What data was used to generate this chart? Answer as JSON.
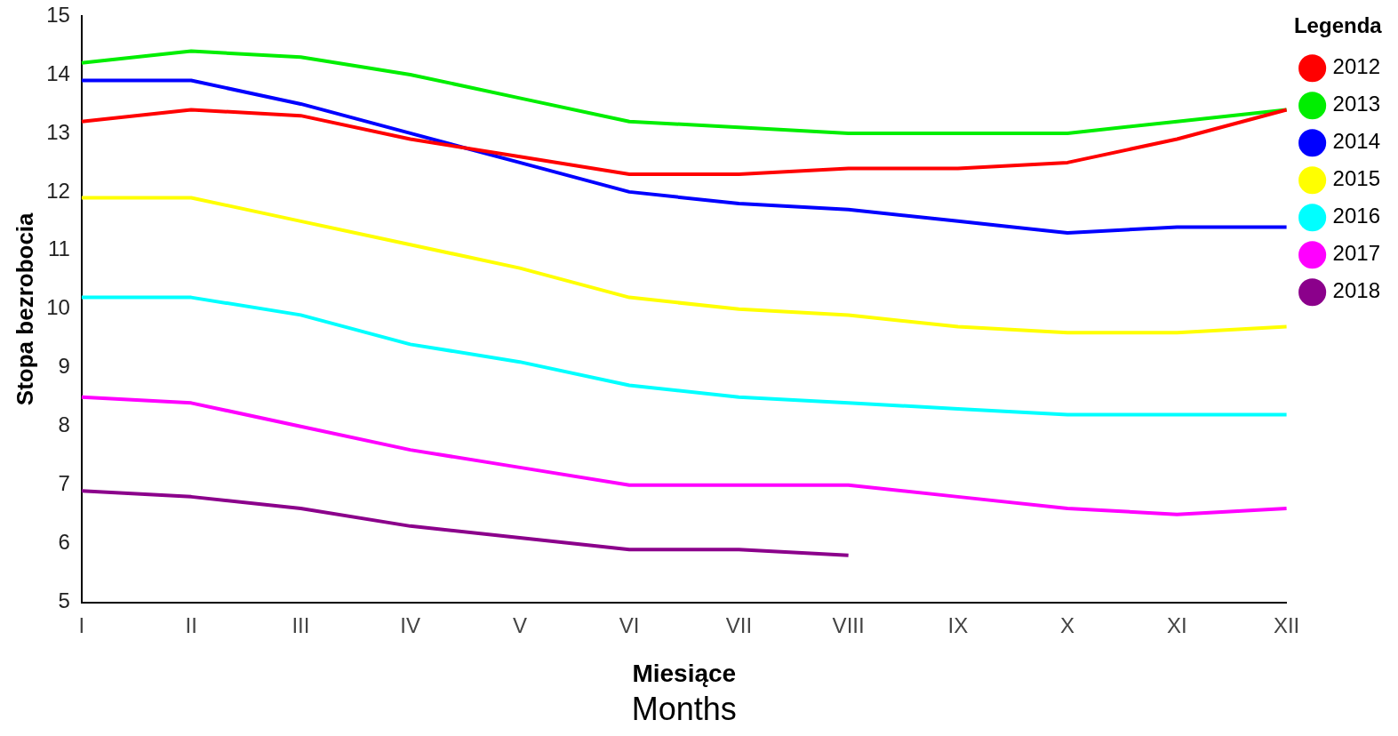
{
  "chart_data": {
    "type": "line",
    "xlabel": "Miesiące",
    "ylabel": "Stopa bezrobocia",
    "legend_title": "Legenda",
    "annotations": [
      "Months"
    ],
    "categories": [
      "I",
      "II",
      "III",
      "IV",
      "V",
      "VI",
      "VII",
      "VIII",
      "IX",
      "X",
      "XI",
      "XII"
    ],
    "series": [
      {
        "name": "2012",
        "color": "#ff0000",
        "values": [
          13.2,
          13.4,
          13.3,
          12.9,
          12.6,
          12.3,
          12.3,
          12.4,
          12.4,
          12.5,
          12.9,
          13.4
        ]
      },
      {
        "name": "2013",
        "color": "#00ee00",
        "values": [
          14.2,
          14.4,
          14.3,
          14.0,
          13.6,
          13.2,
          13.1,
          13.0,
          13.0,
          13.0,
          13.2,
          13.4
        ]
      },
      {
        "name": "2014",
        "color": "#0000ff",
        "values": [
          13.9,
          13.9,
          13.5,
          13.0,
          12.5,
          12.0,
          11.8,
          11.7,
          11.5,
          11.3,
          11.4,
          11.4
        ]
      },
      {
        "name": "2015",
        "color": "#ffff00",
        "values": [
          11.9,
          11.9,
          11.5,
          11.1,
          10.7,
          10.2,
          10.0,
          9.9,
          9.7,
          9.6,
          9.6,
          9.7
        ]
      },
      {
        "name": "2016",
        "color": "#00ffff",
        "values": [
          10.2,
          10.2,
          9.9,
          9.4,
          9.1,
          8.7,
          8.5,
          8.4,
          8.3,
          8.2,
          8.2,
          8.2
        ]
      },
      {
        "name": "2017",
        "color": "#ff00ff",
        "values": [
          8.5,
          8.4,
          8.0,
          7.6,
          7.3,
          7.0,
          7.0,
          7.0,
          6.8,
          6.6,
          6.5,
          6.6
        ]
      },
      {
        "name": "2018",
        "color": "#8b008b",
        "values": [
          6.9,
          6.8,
          6.6,
          6.3,
          6.1,
          5.9,
          5.9,
          5.8,
          null,
          null,
          null,
          null
        ]
      }
    ],
    "ylim": [
      5,
      15
    ],
    "yticks": [
      5,
      6,
      7,
      8,
      9,
      10,
      11,
      12,
      13,
      14,
      15
    ],
    "grid": false,
    "legend": "top right",
    "marker": "none",
    "line_style": "solid"
  }
}
